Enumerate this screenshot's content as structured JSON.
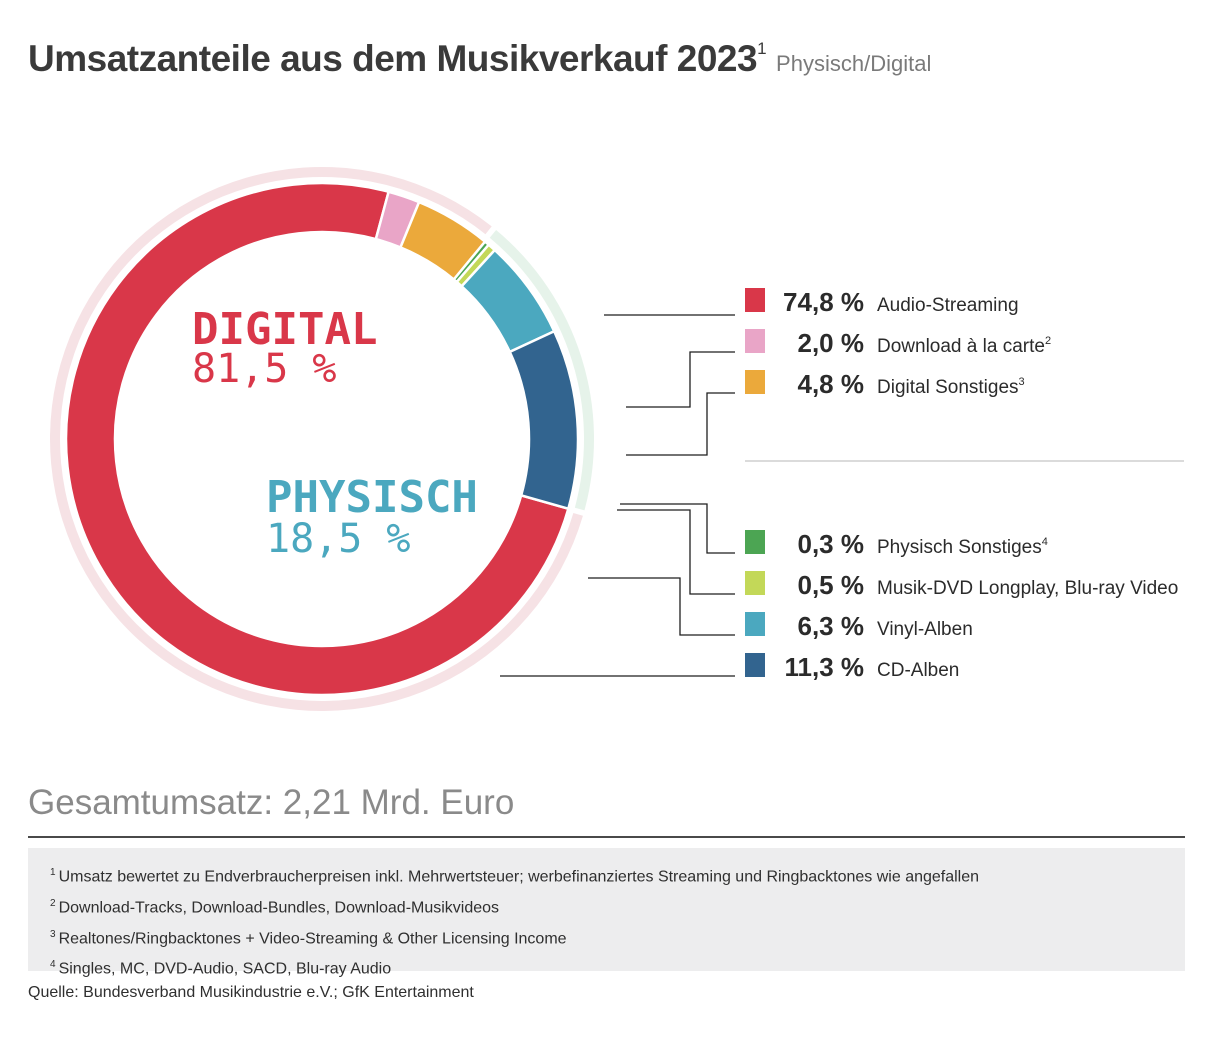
{
  "title": {
    "main": "Umsatzanteile aus dem Musikverkauf 2023",
    "sup": "1",
    "subtitle": "Physisch/Digital"
  },
  "chart_data": {
    "type": "pie",
    "variant": "donut",
    "groups": [
      {
        "name": "DIGITAL",
        "value_label": "81,5 %",
        "value": 81.5,
        "color": "#d93749",
        "ring_color": "#f6e2e5"
      },
      {
        "name": "PHYSISCH",
        "value_label": "18,5 %",
        "value": 18.5,
        "color": "#4ba8bf",
        "ring_color": "#e6f3ea"
      }
    ],
    "series": [
      {
        "label": "Audio-Streaming",
        "sup": "",
        "value": 74.8,
        "value_label": "74,8 %",
        "color": "#d93749",
        "group": "DIGITAL"
      },
      {
        "label": "Download à la carte",
        "sup": "2",
        "value": 2.0,
        "value_label": "2,0 %",
        "color": "#e9a5c7",
        "group": "DIGITAL"
      },
      {
        "label": "Digital Sonstiges",
        "sup": "3",
        "value": 4.8,
        "value_label": "4,8 %",
        "color": "#eba93b",
        "group": "DIGITAL"
      },
      {
        "label": "Physisch Sonstiges",
        "sup": "4",
        "value": 0.3,
        "value_label": "0,3 %",
        "color": "#4ca553",
        "group": "PHYSISCH"
      },
      {
        "label": "Musik-DVD Longplay, Blu-ray Video",
        "sup": "",
        "value": 0.5,
        "value_label": "0,5 %",
        "color": "#c3d858",
        "group": "PHYSISCH"
      },
      {
        "label": "Vinyl-Alben",
        "sup": "",
        "value": 6.3,
        "value_label": "6,3 %",
        "color": "#4ba8bf",
        "group": "PHYSISCH"
      },
      {
        "label": "CD-Alben",
        "sup": "",
        "value": 11.3,
        "value_label": "11,3 %",
        "color": "#32648f",
        "group": "PHYSISCH"
      }
    ]
  },
  "total": "Gesamtumsatz: 2,21 Mrd. Euro",
  "footnotes": [
    {
      "num": "1",
      "text": "Umsatz bewertet zu Endverbraucherpreisen inkl. Mehrwertsteuer; werbefinanziertes Streaming und Ringbacktones wie angefallen"
    },
    {
      "num": "2",
      "text": "Download-Tracks, Download-Bundles, Download-Musikvideos"
    },
    {
      "num": "3",
      "text": "Realtones/Ringbacktones + Video-Streaming & Other Licensing Income"
    },
    {
      "num": "4",
      "text": "Singles, MC, DVD-Audio, SACD, Blu-ray Audio"
    }
  ],
  "source": "Quelle: Bundesverband Musikindustrie e.V.; GfK Entertainment"
}
